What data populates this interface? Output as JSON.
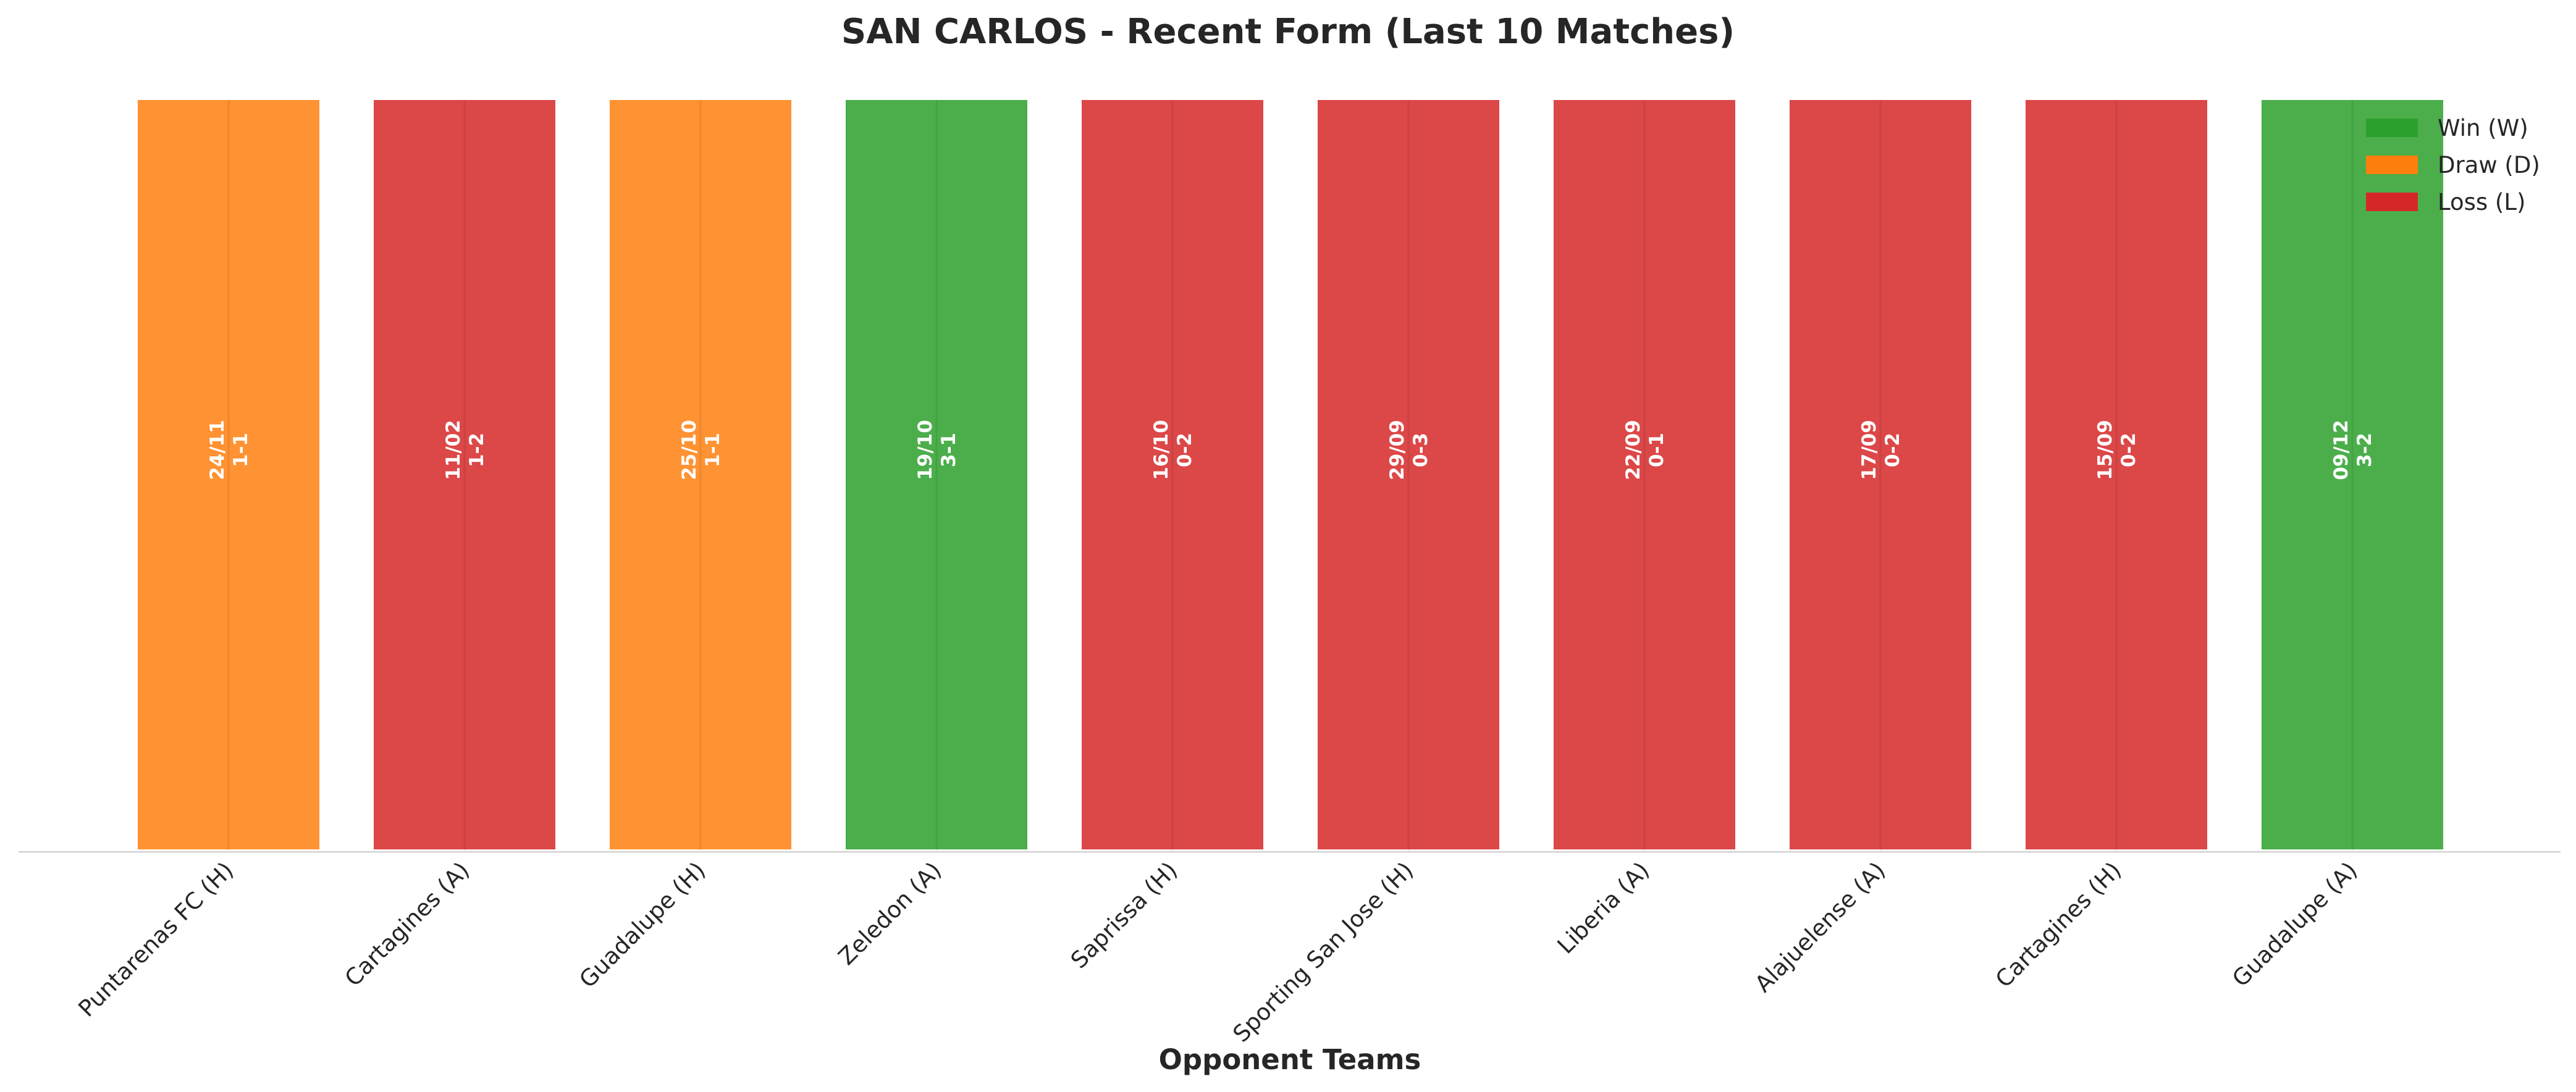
{
  "chart_data": {
    "type": "bar",
    "title": "SAN CARLOS - Recent Form (Last 10 Matches)",
    "xlabel": "Opponent Teams",
    "ylabel": "",
    "ylim": [
      0,
      1
    ],
    "grid": false,
    "legend_position": "top-right",
    "categories": [
      "Puntarenas FC (H)",
      "Cartagines (A)",
      "Guadalupe (H)",
      "Zeledon (A)",
      "Saprissa (H)",
      "Sporting San Jose (H)",
      "Liberia (A)",
      "Alajuelense (A)",
      "Cartagines (H)",
      "Guadalupe (A)"
    ],
    "values": [
      1,
      1,
      1,
      1,
      1,
      1,
      1,
      1,
      1,
      1
    ],
    "results": [
      "D",
      "L",
      "D",
      "W",
      "L",
      "L",
      "L",
      "L",
      "L",
      "W"
    ],
    "bar_labels": [
      {
        "date": "24/11",
        "score": "1-1"
      },
      {
        "date": "11/02",
        "score": "1-2"
      },
      {
        "date": "25/10",
        "score": "1-1"
      },
      {
        "date": "19/10",
        "score": "3-1"
      },
      {
        "date": "16/10",
        "score": "0-2"
      },
      {
        "date": "29/09",
        "score": "0-3"
      },
      {
        "date": "22/09",
        "score": "0-1"
      },
      {
        "date": "17/09",
        "score": "0-2"
      },
      {
        "date": "15/09",
        "score": "0-2"
      },
      {
        "date": "09/12",
        "score": "3-2"
      }
    ],
    "legend": [
      {
        "key": "W",
        "label": "Win (W)",
        "color": "#2ca02c"
      },
      {
        "key": "D",
        "label": "Draw (D)",
        "color": "#ff7f0e"
      },
      {
        "key": "L",
        "label": "Loss (L)",
        "color": "#d62728"
      }
    ]
  }
}
